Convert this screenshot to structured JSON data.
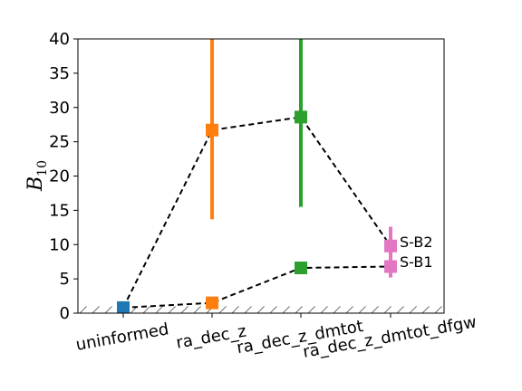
{
  "chart_data": {
    "type": "line",
    "title": "",
    "xlabel": "",
    "ylabel": "B",
    "ylabel_subscript": "10",
    "ylim": [
      0,
      40
    ],
    "yticks": [
      0,
      5,
      10,
      15,
      20,
      25,
      30,
      35,
      40
    ],
    "categories": [
      "uninformed",
      "ra_dec_z",
      "ra_dec_z_dmtot",
      "ra_dec_z_dmtot_dfgw"
    ],
    "category_colors": [
      "#1f77b4",
      "#ff7f0e",
      "#2ca02c",
      "#e377c2"
    ],
    "hatched_band": [
      0,
      1
    ],
    "grid": false,
    "series": [
      {
        "values": [
          0.8,
          26.7,
          28.6,
          9.8
        ],
        "error_low": [
          null,
          13.7,
          15.5,
          7.2
        ],
        "error_high": [
          null,
          40,
          40,
          12.6
        ],
        "line_style": "dashed",
        "marker": "square"
      },
      {
        "values": [
          0.8,
          1.5,
          6.6,
          6.8
        ],
        "error_low": [
          null,
          null,
          null,
          5.2
        ],
        "error_high": [
          null,
          null,
          null,
          7.9
        ],
        "line_style": "dashed",
        "marker": "square"
      }
    ],
    "annotations": [
      {
        "text": "S-B2",
        "category": 3,
        "y": 10.4
      },
      {
        "text": "S-B1",
        "category": 3,
        "y": 7.5
      }
    ]
  }
}
